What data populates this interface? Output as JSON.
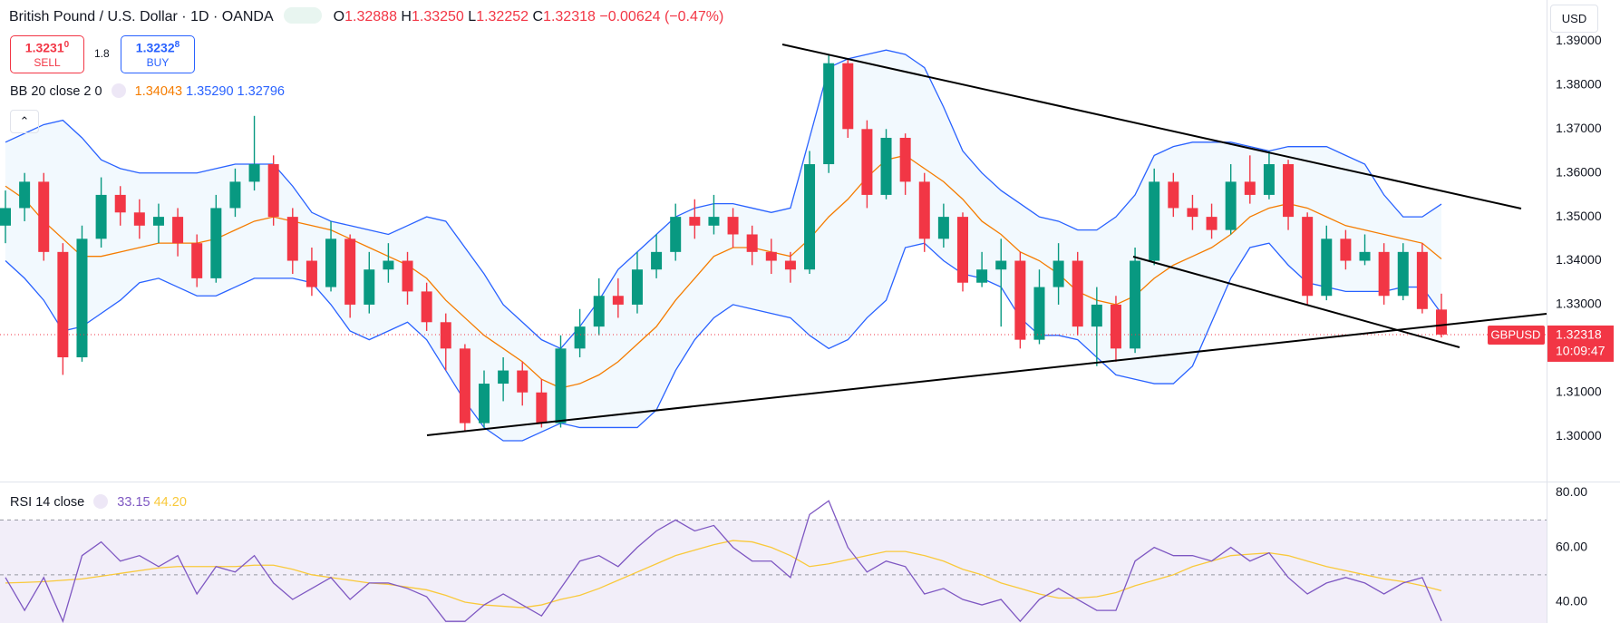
{
  "header": {
    "title": "British Pound / U.S. Dollar · 1D · OANDA",
    "o_label": "O",
    "o": "1.32888",
    "h_label": "H",
    "h": "1.33250",
    "l_label": "L",
    "l": "1.32252",
    "c_label": "C",
    "c": "1.32318",
    "change": "−0.00624 (−0.47%)",
    "currency": "USD"
  },
  "trade": {
    "sell_price": "1.3231",
    "sell_sup": "0",
    "sell": "SELL",
    "spread": "1.8",
    "buy_price": "1.3232",
    "buy_sup": "8",
    "buy": "BUY"
  },
  "chart_data": [
    {
      "type": "candlestick",
      "indicator": "BB 20 close 2 0",
      "open": [
        1.348,
        1.352,
        1.358,
        1.342,
        1.318,
        1.345,
        1.355,
        1.351,
        1.348,
        1.35,
        1.344,
        1.336,
        1.352,
        1.358,
        1.362,
        1.35,
        1.34,
        1.334,
        1.345,
        1.33,
        1.338,
        1.34,
        1.333,
        1.326,
        1.32,
        1.303,
        1.312,
        1.315,
        1.31,
        1.303,
        1.32,
        1.325,
        1.332,
        1.33,
        1.338,
        1.342,
        1.35,
        1.348,
        1.35,
        1.346,
        1.342,
        1.34,
        1.338,
        1.362,
        1.385,
        1.37,
        1.355,
        1.368,
        1.358,
        1.345,
        1.35,
        1.335,
        1.338,
        1.34,
        1.322,
        1.334,
        1.34,
        1.325,
        1.33,
        1.32,
        1.34,
        1.358,
        1.352,
        1.35,
        1.347,
        1.358,
        1.355,
        1.362,
        1.35,
        1.332,
        1.345,
        1.34,
        1.342,
        1.332,
        1.342,
        1.32888
      ],
      "high": [
        1.356,
        1.36,
        1.36,
        1.344,
        1.348,
        1.359,
        1.357,
        1.354,
        1.353,
        1.352,
        1.346,
        1.355,
        1.361,
        1.373,
        1.364,
        1.352,
        1.343,
        1.349,
        1.346,
        1.342,
        1.344,
        1.342,
        1.335,
        1.328,
        1.321,
        1.315,
        1.318,
        1.317,
        1.313,
        1.323,
        1.329,
        1.336,
        1.336,
        1.342,
        1.346,
        1.353,
        1.354,
        1.355,
        1.352,
        1.348,
        1.345,
        1.342,
        1.365,
        1.387,
        1.386,
        1.372,
        1.37,
        1.369,
        1.36,
        1.353,
        1.351,
        1.342,
        1.345,
        1.342,
        1.338,
        1.344,
        1.342,
        1.334,
        1.332,
        1.343,
        1.361,
        1.36,
        1.355,
        1.353,
        1.362,
        1.364,
        1.365,
        1.363,
        1.351,
        1.348,
        1.347,
        1.346,
        1.344,
        1.344,
        1.344,
        1.3325
      ],
      "low": [
        1.344,
        1.349,
        1.34,
        1.314,
        1.317,
        1.343,
        1.348,
        1.345,
        1.344,
        1.341,
        1.334,
        1.335,
        1.35,
        1.356,
        1.348,
        1.337,
        1.332,
        1.333,
        1.327,
        1.328,
        1.335,
        1.33,
        1.324,
        1.315,
        1.301,
        1.302,
        1.308,
        1.307,
        1.302,
        1.302,
        1.318,
        1.323,
        1.327,
        1.328,
        1.336,
        1.34,
        1.345,
        1.346,
        1.343,
        1.339,
        1.337,
        1.335,
        1.337,
        1.36,
        1.368,
        1.352,
        1.354,
        1.355,
        1.342,
        1.343,
        1.333,
        1.334,
        1.325,
        1.32,
        1.321,
        1.33,
        1.323,
        1.316,
        1.317,
        1.319,
        1.339,
        1.35,
        1.347,
        1.345,
        1.346,
        1.353,
        1.354,
        1.347,
        1.33,
        1.331,
        1.338,
        1.339,
        1.33,
        1.331,
        1.328,
        1.32252
      ],
      "close": [
        1.352,
        1.358,
        1.342,
        1.318,
        1.345,
        1.355,
        1.351,
        1.348,
        1.35,
        1.344,
        1.336,
        1.352,
        1.358,
        1.362,
        1.35,
        1.34,
        1.334,
        1.345,
        1.33,
        1.338,
        1.34,
        1.333,
        1.326,
        1.32,
        1.303,
        1.312,
        1.315,
        1.31,
        1.303,
        1.32,
        1.325,
        1.332,
        1.33,
        1.338,
        1.342,
        1.35,
        1.348,
        1.35,
        1.346,
        1.342,
        1.34,
        1.338,
        1.362,
        1.385,
        1.37,
        1.355,
        1.368,
        1.358,
        1.345,
        1.35,
        1.335,
        1.338,
        1.34,
        1.322,
        1.334,
        1.34,
        1.325,
        1.33,
        1.32,
        1.34,
        1.358,
        1.352,
        1.35,
        1.347,
        1.358,
        1.355,
        1.362,
        1.35,
        1.332,
        1.345,
        1.34,
        1.342,
        1.332,
        1.342,
        1.329,
        1.32318
      ],
      "up_color": "#089981",
      "down_color": "#f23645",
      "bb_middle": {
        "color": "#f57c00",
        "value_label": "1.34043",
        "values": [
          1.357,
          1.354,
          1.349,
          1.345,
          1.341,
          1.341,
          1.342,
          1.343,
          1.344,
          1.344,
          1.344,
          1.345,
          1.347,
          1.349,
          1.35,
          1.349,
          1.348,
          1.347,
          1.345,
          1.343,
          1.341,
          1.339,
          1.336,
          1.331,
          1.327,
          1.323,
          1.32,
          1.317,
          1.313,
          1.311,
          1.312,
          1.314,
          1.317,
          1.321,
          1.325,
          1.331,
          1.336,
          1.341,
          1.343,
          1.343,
          1.342,
          1.341,
          1.345,
          1.35,
          1.354,
          1.359,
          1.363,
          1.364,
          1.361,
          1.358,
          1.354,
          1.349,
          1.346,
          1.342,
          1.34,
          1.337,
          1.333,
          1.331,
          1.33,
          1.332,
          1.336,
          1.339,
          1.341,
          1.343,
          1.346,
          1.35,
          1.352,
          1.353,
          1.352,
          1.35,
          1.348,
          1.347,
          1.346,
          1.345,
          1.344,
          1.34043
        ]
      },
      "bb_upper": {
        "color": "#2962ff",
        "value_label": "1.35290",
        "values": [
          1.367,
          1.369,
          1.371,
          1.372,
          1.368,
          1.363,
          1.361,
          1.36,
          1.36,
          1.36,
          1.36,
          1.361,
          1.362,
          1.362,
          1.362,
          1.357,
          1.351,
          1.349,
          1.348,
          1.347,
          1.346,
          1.348,
          1.35,
          1.349,
          1.343,
          1.337,
          1.33,
          1.326,
          1.322,
          1.32,
          1.325,
          1.331,
          1.338,
          1.342,
          1.346,
          1.35,
          1.352,
          1.353,
          1.353,
          1.352,
          1.351,
          1.352,
          1.368,
          1.384,
          1.386,
          1.387,
          1.388,
          1.387,
          1.384,
          1.375,
          1.365,
          1.36,
          1.356,
          1.353,
          1.35,
          1.349,
          1.347,
          1.347,
          1.35,
          1.355,
          1.364,
          1.366,
          1.367,
          1.367,
          1.367,
          1.366,
          1.365,
          1.366,
          1.366,
          1.366,
          1.364,
          1.362,
          1.355,
          1.35,
          1.35,
          1.3529
        ]
      },
      "bb_lower": {
        "color": "#2962ff",
        "value_label": "1.32796",
        "values": [
          1.34,
          1.336,
          1.331,
          1.324,
          1.325,
          1.328,
          1.331,
          1.335,
          1.336,
          1.334,
          1.332,
          1.332,
          1.334,
          1.336,
          1.336,
          1.336,
          1.335,
          1.33,
          1.324,
          1.322,
          1.324,
          1.326,
          1.322,
          1.315,
          1.308,
          1.302,
          1.299,
          1.299,
          1.301,
          1.303,
          1.302,
          1.302,
          1.302,
          1.302,
          1.306,
          1.315,
          1.322,
          1.327,
          1.33,
          1.329,
          1.328,
          1.327,
          1.323,
          1.32,
          1.322,
          1.327,
          1.331,
          1.343,
          1.344,
          1.34,
          1.337,
          1.336,
          1.334,
          1.327,
          1.323,
          1.323,
          1.322,
          1.318,
          1.314,
          1.313,
          1.312,
          1.312,
          1.316,
          1.326,
          1.336,
          1.343,
          1.344,
          1.339,
          1.335,
          1.334,
          1.333,
          1.333,
          1.333,
          1.334,
          1.334,
          1.32796
        ]
      },
      "band_fill": "#2196f3",
      "ylim": [
        1.2897,
        1.3994
      ],
      "yticks": [
        {
          "value": 1.39,
          "label": "1.39000"
        },
        {
          "value": 1.38,
          "label": "1.38000"
        },
        {
          "value": 1.37,
          "label": "1.37000"
        },
        {
          "value": 1.36,
          "label": "1.36000"
        },
        {
          "value": 1.35,
          "label": "1.35000"
        },
        {
          "value": 1.34,
          "label": "1.34000"
        },
        {
          "value": 1.33,
          "label": "1.33000"
        },
        {
          "value": 1.31,
          "label": "1.31000"
        },
        {
          "value": 1.3,
          "label": "1.30000"
        }
      ],
      "last_symbol": "GBPUSD",
      "last_countdown": "10:09:47"
    },
    {
      "type": "line",
      "indicator": "RSI 14 close",
      "series": [
        {
          "color": "#7e57c2",
          "value_label": "33.15",
          "values": [
            49,
            37,
            49,
            33,
            57,
            62,
            55,
            57,
            53,
            57,
            43,
            53,
            51,
            57,
            47,
            41,
            45,
            49,
            41,
            47,
            47,
            45,
            42,
            33,
            33,
            39,
            43,
            39,
            35,
            45,
            55,
            57,
            53,
            60,
            66,
            70,
            66,
            68,
            60,
            55,
            55,
            49,
            72,
            77,
            60,
            51,
            55,
            53,
            43,
            45,
            41,
            39,
            41,
            33,
            41,
            45,
            41,
            37,
            37,
            55,
            60,
            57,
            57,
            55,
            60,
            55,
            58,
            49,
            43,
            47,
            49,
            47,
            43,
            47,
            49,
            33.15
          ]
        },
        {
          "color": "#f9c93b",
          "value_label": "44.20",
          "values": [
            47,
            47.2,
            47.5,
            48,
            48.5,
            49.5,
            50.5,
            51.5,
            52.5,
            53,
            53,
            53,
            53,
            53.5,
            53.5,
            52,
            50,
            49,
            48,
            47,
            46.5,
            45.5,
            44.5,
            42.5,
            40,
            39,
            38.5,
            38,
            39,
            41,
            42.5,
            45,
            48,
            51,
            54,
            57,
            59,
            61,
            62.5,
            62,
            60,
            57,
            53,
            54,
            55.5,
            57,
            58.5,
            58.5,
            57,
            55,
            52,
            50,
            47,
            45,
            43,
            41.5,
            41.5,
            42,
            43.5,
            46,
            48,
            50,
            53,
            55,
            57,
            57.5,
            58,
            57,
            55,
            53,
            51.5,
            50,
            48.5,
            47.5,
            46,
            44.2
          ]
        }
      ],
      "bands": [
        70,
        50,
        30
      ],
      "band_fill": "#7e57c2",
      "ylim": [
        32.4,
        83.7
      ],
      "yticks": [
        {
          "value": 80,
          "label": "80.00"
        },
        {
          "value": 60,
          "label": "60.00"
        },
        {
          "value": 40,
          "label": "40.00"
        }
      ]
    }
  ]
}
